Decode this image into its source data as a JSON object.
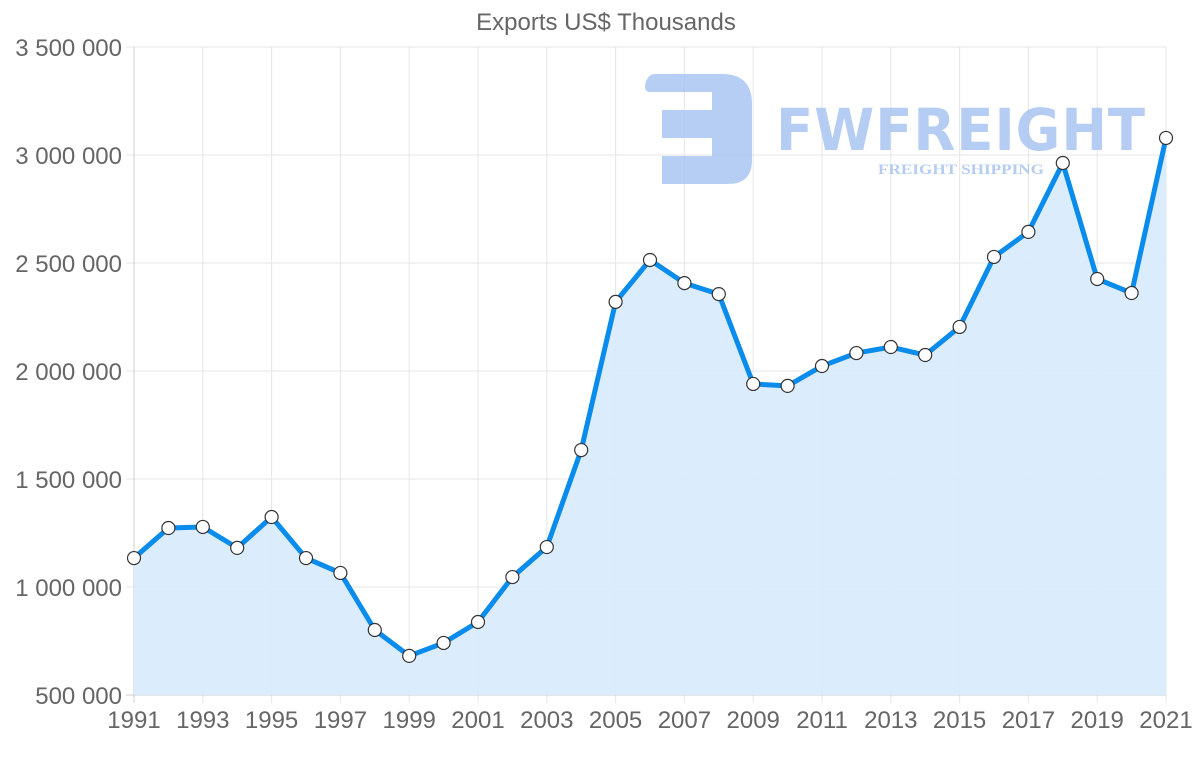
{
  "chart_data": {
    "type": "area",
    "title": "Exports US$ Thousands",
    "xlabel": "",
    "ylabel": "",
    "x": [
      1991,
      1992,
      1993,
      1994,
      1995,
      1996,
      1997,
      1998,
      1999,
      2000,
      2001,
      2002,
      2003,
      2004,
      2005,
      2006,
      2007,
      2008,
      2009,
      2010,
      2011,
      2012,
      2013,
      2014,
      2015,
      2016,
      2017,
      2018,
      2019,
      2020,
      2021
    ],
    "series": [
      {
        "name": "Exports US$ Thousands",
        "values": [
          1134000,
          1273000,
          1278000,
          1181000,
          1324000,
          1134000,
          1065000,
          801000,
          681000,
          741000,
          838000,
          1046000,
          1185000,
          1634000,
          2320000,
          2514000,
          2407000,
          2356000,
          1940000,
          1931000,
          2023000,
          2083000,
          2111000,
          2074000,
          2204000,
          2528000,
          2644000,
          2963000,
          2426000,
          2361000,
          3079000
        ],
        "line_color": "#0a8ced",
        "fill_color": "#d9ecfc"
      }
    ],
    "ylim": [
      500000,
      3500000
    ],
    "yticks": [
      500000,
      1000000,
      1500000,
      2000000,
      2500000,
      3000000,
      3500000
    ],
    "ytick_labels": [
      "500 000",
      "1 000 000",
      "1 500 000",
      "2 000 000",
      "2 500 000",
      "3 000 000",
      "3 500 000"
    ],
    "xtick_labels": [
      "1991",
      "1993",
      "1995",
      "1997",
      "1999",
      "2001",
      "2003",
      "2005",
      "2007",
      "2009",
      "2011",
      "2013",
      "2015",
      "2017",
      "2019",
      "2021"
    ],
    "grid": true,
    "legend": "none"
  },
  "watermark": {
    "brand": "FWFREIGHT",
    "tagline": "FREIGHT SHIPPING",
    "color": "#a9c4f2"
  }
}
